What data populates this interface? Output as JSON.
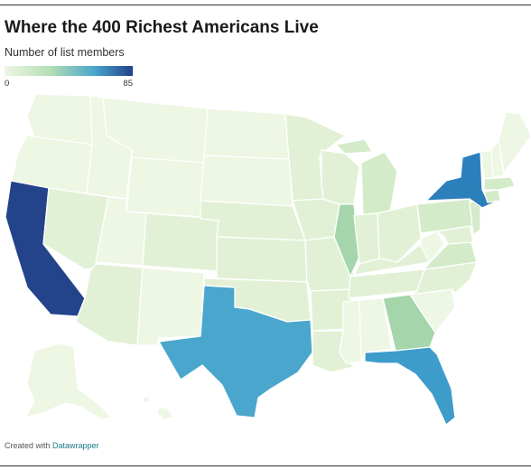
{
  "header": {
    "title": "Where the 400 Richest Americans Live",
    "subtitle": "Number of list members"
  },
  "legend": {
    "min_label": "0",
    "max_label": "85",
    "color_low": "#eef6e4",
    "color_mid": "#4aa6cc",
    "color_high": "#22418a"
  },
  "footer": {
    "created_with": "Created with ",
    "tool_name": "Datawrapper"
  },
  "colors": {
    "lightest": "#eef6e4",
    "light": "#e2f1d6",
    "pale_green": "#d3ebc8",
    "green": "#bbe0b8",
    "medium_green": "#a5d5aa",
    "texas_blue": "#4aa6cc",
    "florida_blue": "#3e9ccb",
    "new_york_blue": "#2b7fbb",
    "california_navy": "#23448a"
  }
}
